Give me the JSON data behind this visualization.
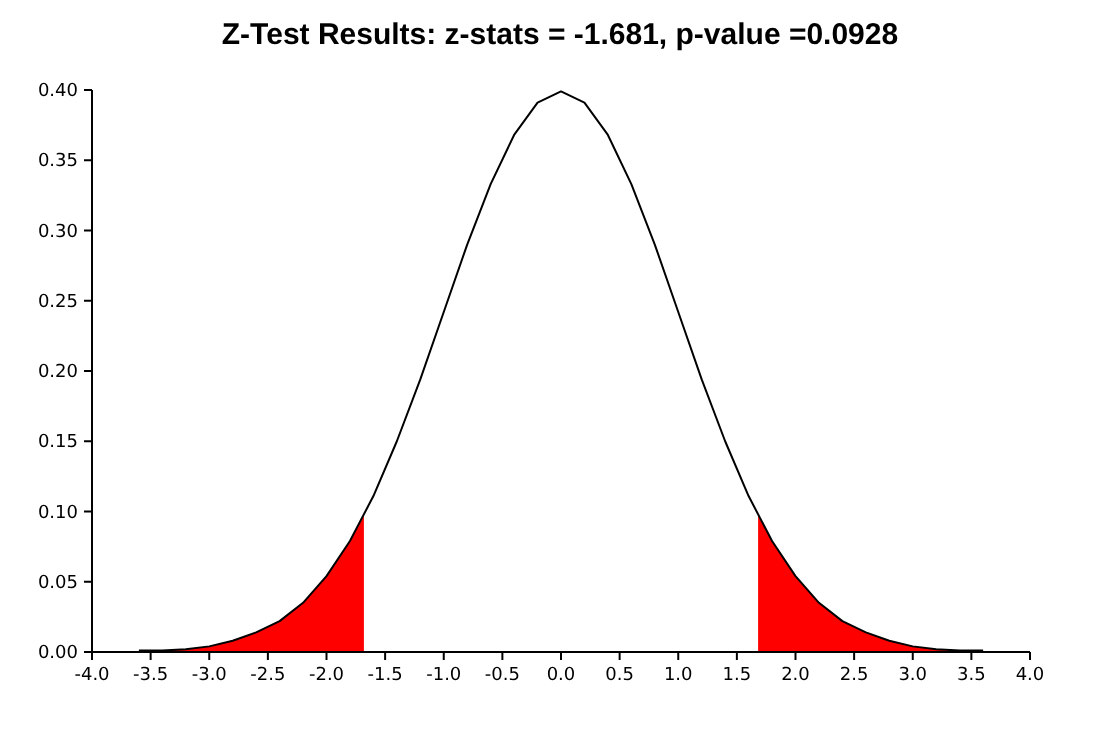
{
  "chart_data": {
    "type": "line",
    "title": "Z-Test Results: z-stats = -1.681, p-value =0.0928",
    "xlim": [
      -4,
      4
    ],
    "ylim": [
      0,
      0.4
    ],
    "xticks": [
      {
        "value": -4,
        "label": "-4.0"
      },
      {
        "value": -3.5,
        "label": "-3.5"
      },
      {
        "value": -3,
        "label": "-3.0"
      },
      {
        "value": -2.5,
        "label": "-2.5"
      },
      {
        "value": -2,
        "label": "-2.0"
      },
      {
        "value": -1.5,
        "label": "-1.5"
      },
      {
        "value": -1,
        "label": "-1.0"
      },
      {
        "value": -0.5,
        "label": "-0.5"
      },
      {
        "value": 0,
        "label": "0.0"
      },
      {
        "value": 0.5,
        "label": "0.5"
      },
      {
        "value": 1,
        "label": "1.0"
      },
      {
        "value": 1.5,
        "label": "1.5"
      },
      {
        "value": 2,
        "label": "2.0"
      },
      {
        "value": 2.5,
        "label": "2.5"
      },
      {
        "value": 3,
        "label": "3.0"
      },
      {
        "value": 3.5,
        "label": "3.5"
      },
      {
        "value": 4,
        "label": "4.0"
      }
    ],
    "yticks": [
      {
        "value": 0,
        "label": "0.00"
      },
      {
        "value": 0.05,
        "label": "0.05"
      },
      {
        "value": 0.1,
        "label": "0.10"
      },
      {
        "value": 0.15,
        "label": "0.15"
      },
      {
        "value": 0.2,
        "label": "0.20"
      },
      {
        "value": 0.25,
        "label": "0.25"
      },
      {
        "value": 0.3,
        "label": "0.30"
      },
      {
        "value": 0.35,
        "label": "0.35"
      },
      {
        "value": 0.4,
        "label": "0.40"
      }
    ],
    "grid": false,
    "marker": "none",
    "line_style": "solid",
    "series": [
      {
        "type": "area",
        "color": "#ff0000",
        "x": [
          -3.6,
          -3.4,
          -3.2,
          -3.0,
          -2.8,
          -2.6,
          -2.4,
          -2.2,
          -2.0,
          -1.8,
          -1.681
        ],
        "values": [
          0.001,
          0.001,
          0.002,
          0.004,
          0.008,
          0.014,
          0.022,
          0.035,
          0.054,
          0.079,
          0.097
        ]
      },
      {
        "type": "area",
        "color": "#ff0000",
        "x": [
          1.681,
          1.8,
          2.0,
          2.2,
          2.4,
          2.6,
          2.8,
          3.0,
          3.2,
          3.4,
          3.6
        ],
        "values": [
          0.097,
          0.079,
          0.054,
          0.035,
          0.022,
          0.014,
          0.008,
          0.004,
          0.002,
          0.001,
          0.001
        ]
      },
      {
        "color": "#000000",
        "x": [
          -3.6,
          -3.4,
          -3.2,
          -3.0,
          -2.8,
          -2.6,
          -2.4,
          -2.2,
          -2.0,
          -1.8,
          -1.6,
          -1.4,
          -1.2,
          -1.0,
          -0.8,
          -0.6,
          -0.4,
          -0.2,
          0,
          0.2,
          0.4,
          0.6,
          0.8,
          1.0,
          1.2,
          1.4,
          1.6,
          1.8,
          2.0,
          2.2,
          2.4,
          2.6,
          2.8,
          3.0,
          3.2,
          3.4,
          3.6
        ],
        "values": [
          0.001,
          0.001,
          0.002,
          0.004,
          0.008,
          0.014,
          0.022,
          0.035,
          0.054,
          0.079,
          0.111,
          0.15,
          0.194,
          0.242,
          0.29,
          0.333,
          0.368,
          0.391,
          0.399,
          0.391,
          0.368,
          0.333,
          0.29,
          0.242,
          0.194,
          0.15,
          0.111,
          0.079,
          0.054,
          0.035,
          0.022,
          0.014,
          0.008,
          0.004,
          0.002,
          0.001,
          0.001
        ]
      }
    ]
  }
}
